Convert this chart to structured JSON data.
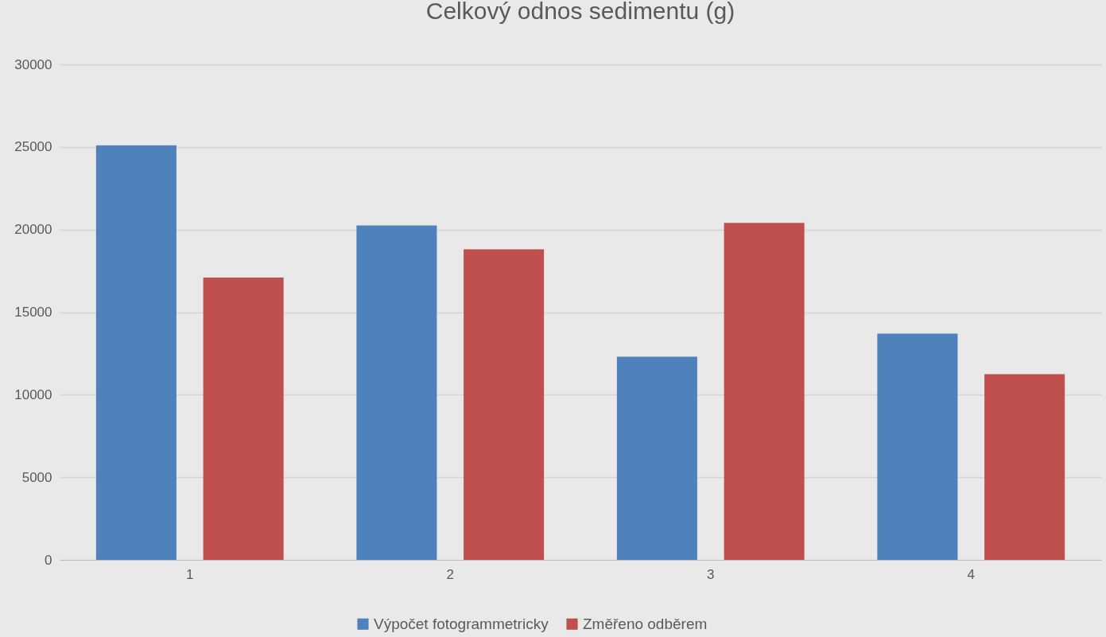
{
  "chart_data": {
    "type": "bar",
    "title": "Celkový odnos sedimentu (g)",
    "categories": [
      "1",
      "2",
      "3",
      "4"
    ],
    "series": [
      {
        "name": "Výpočet fotogrammetricky",
        "color": "#4f81bd",
        "values": [
          25100,
          20250,
          12300,
          13700
        ]
      },
      {
        "name": "Změřeno odběrem",
        "color": "#c0504d",
        "values": [
          17100,
          18800,
          20400,
          11250
        ]
      }
    ],
    "ylim": [
      0,
      30000
    ],
    "yticks": [
      0,
      5000,
      10000,
      15000,
      20000,
      25000,
      30000
    ],
    "grid": "y",
    "legend": "bottom"
  }
}
